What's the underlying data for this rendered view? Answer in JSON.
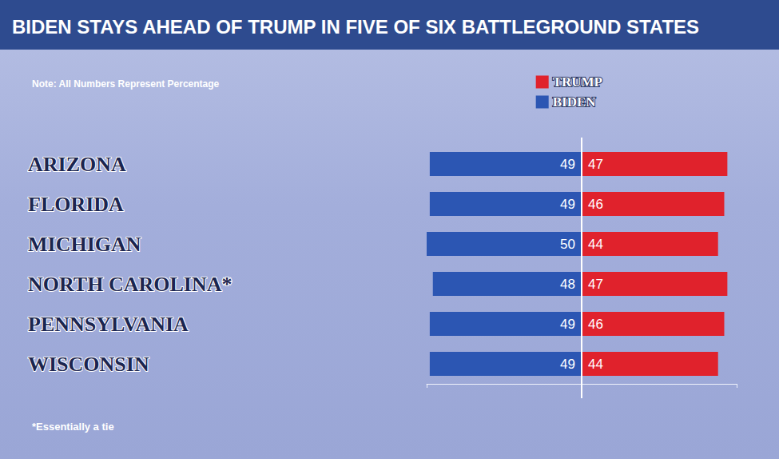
{
  "chart_data": {
    "type": "bar",
    "orientation": "horizontal",
    "title": "BIDEN STAYS AHEAD OF TRUMP IN FIVE OF SIX BATTLEGROUND STATES",
    "annotations": [
      "Note: All Numbers Represent Percentage",
      "*Essentially a tie"
    ],
    "categories": [
      "ARIZONA",
      "FLORIDA",
      "MICHIGAN",
      "NORTH CAROLINA*",
      "PENNSYLVANIA",
      "WISCONSIN"
    ],
    "series": [
      {
        "name": "TRUMP",
        "color": "#e0222c",
        "values": [
          47,
          46,
          44,
          47,
          46,
          44
        ]
      },
      {
        "name": "BIDEN",
        "color": "#2c56b3",
        "values": [
          49,
          49,
          50,
          48,
          49,
          49
        ]
      }
    ],
    "xlim": [
      0,
      50
    ],
    "xticks": [
      0,
      50
    ],
    "tick_labels": "y",
    "data_labels": true,
    "legend": "top-right",
    "grid": false
  }
}
